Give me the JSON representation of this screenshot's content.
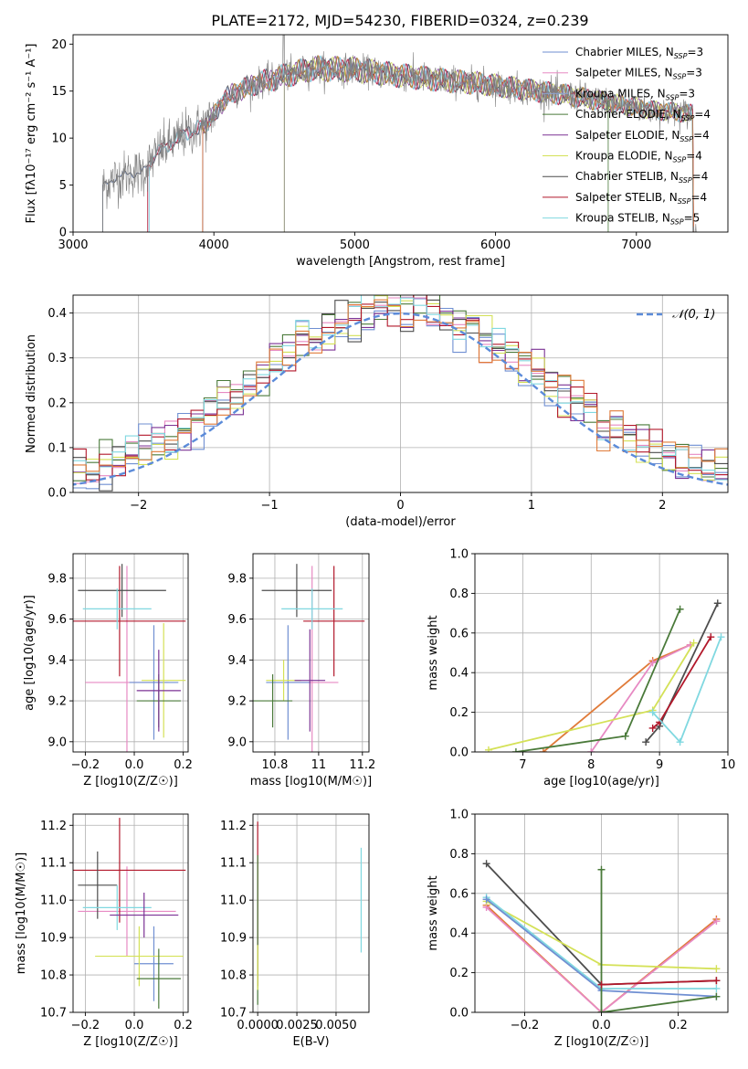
{
  "figure": {
    "title": "PLATE=2172, MJD=54230, FIBERID=0324, z=0.239"
  },
  "colors": {
    "chabrier_miles": "#6f8fd2",
    "salpeter_miles": "#e78ac3",
    "kroupa_miles": "#8da0cb",
    "chabrier_elodie": "#4a7a3a",
    "salpeter_elodie": "#7b3294",
    "kroupa_elodie": "#d4e157",
    "chabrier_stelib": "#4d4d4d",
    "salpeter_stelib": "#b2182b",
    "kroupa_stelib": "#80d8e0",
    "data_gray": "#808080",
    "orange": "#e07b39",
    "gauss": "#5b8bd9"
  },
  "chart_data": [
    {
      "id": "spectrum",
      "type": "line",
      "xlabel": "wavelength [Angstrom, rest frame]",
      "ylabel": "Flux [fλ10⁻¹⁷ erg cm⁻² s⁻¹ A⁻¹]",
      "xlim": [
        3000,
        7650
      ],
      "ylim": [
        0,
        21
      ],
      "xticks": [
        3000,
        4000,
        5000,
        6000,
        7000
      ],
      "yticks": [
        0,
        5,
        10,
        15,
        20
      ],
      "legend": [
        {
          "name": "Chabrier MILES, N_SSP=3",
          "color": "#6f8fd2"
        },
        {
          "name": "Salpeter MILES, N_SSP=3",
          "color": "#e78ac3"
        },
        {
          "name": "Kroupa MILES, N_SSP=3",
          "color": "#8da0cb"
        },
        {
          "name": "Chabrier ELODIE, N_SSP=4",
          "color": "#4a7a3a"
        },
        {
          "name": "Salpeter ELODIE, N_SSP=4",
          "color": "#7b3294"
        },
        {
          "name": "Kroupa ELODIE, N_SSP=4",
          "color": "#d4e157"
        },
        {
          "name": "Chabrier STELIB, N_SSP=4",
          "color": "#4d4d4d"
        },
        {
          "name": "Salpeter STELIB, N_SSP=4",
          "color": "#b2182b"
        },
        {
          "name": "Kroupa STELIB, N_SSP=5",
          "color": "#80d8e0"
        }
      ],
      "legend_position": "top-right",
      "continuum": {
        "x": [
          3210,
          3300,
          3400,
          3500,
          3600,
          3800,
          3950,
          4000,
          4100,
          4300,
          4500,
          4700,
          5000,
          5300,
          5600,
          5900,
          6200,
          6500,
          6800,
          7100,
          7400
        ],
        "y": [
          4.8,
          5.8,
          6.2,
          6.4,
          8.5,
          10.5,
          11.5,
          12.5,
          14.5,
          15.8,
          16.6,
          17.4,
          17.3,
          16.7,
          16.2,
          15.8,
          15.2,
          14.6,
          13.8,
          13.0,
          12.6
        ]
      },
      "model_starts": [
        3210,
        3530,
        3540,
        3920,
        3920,
        4500
      ]
    },
    {
      "id": "residuals",
      "type": "bar",
      "xlabel": "(data-model)/error",
      "ylabel": "Normed distribution",
      "xlim": [
        -2.5,
        2.5
      ],
      "ylim": [
        0,
        0.44
      ],
      "xticks": [
        -2,
        -1,
        0,
        1,
        2
      ],
      "yticks": [
        0.0,
        0.1,
        0.2,
        0.3,
        0.4
      ],
      "legend": [
        {
          "name": "𝒩(0, 1)",
          "color": "#5b8bd9"
        }
      ],
      "bin_width": 0.1
    },
    {
      "id": "age_vs_Z",
      "type": "scatter",
      "xlabel": "Z [log10(Z/Z☉)]",
      "ylabel": "age  [log10(age/yr)]",
      "xlim": [
        -0.25,
        0.22
      ],
      "ylim": [
        8.95,
        9.92
      ],
      "xticks": [
        -0.2,
        0.0,
        0.2
      ],
      "xticklabels": [
        "−0.2",
        "0.0",
        "0.2"
      ],
      "yticks": [
        9.0,
        9.2,
        9.4,
        9.6,
        9.8
      ],
      "points": [
        {
          "x": -0.03,
          "y": 9.29,
          "xerr": 0.17,
          "yerr": 0.57,
          "color": "#e78ac3"
        },
        {
          "x": -0.06,
          "y": 9.59,
          "xerr": 0.27,
          "yerr": 0.27,
          "color": "#b2182b"
        },
        {
          "x": -0.05,
          "y": 9.74,
          "xerr": 0.18,
          "yerr": 0.13,
          "color": "#4d4d4d"
        },
        {
          "x": -0.07,
          "y": 9.65,
          "xerr": 0.14,
          "yerr": 0.1,
          "color": "#80d8e0"
        },
        {
          "x": 0.08,
          "y": 9.29,
          "xerr": 0.1,
          "yerr": 0.28,
          "color": "#6f8fd2"
        },
        {
          "x": 0.12,
          "y": 9.3,
          "xerr": 0.09,
          "yerr": 0.28,
          "color": "#d4e157"
        },
        {
          "x": 0.1,
          "y": 9.2,
          "xerr": 0.09,
          "yerr": 0.13,
          "color": "#4a7a3a"
        },
        {
          "x": 0.1,
          "y": 9.25,
          "xerr": 0.09,
          "yerr": 0.2,
          "color": "#7b3294"
        }
      ]
    },
    {
      "id": "age_vs_mass",
      "type": "scatter",
      "xlabel": "mass [log10(M/M☉)]",
      "ylabel": "",
      "xlim": [
        10.7,
        11.23
      ],
      "ylim": [
        8.95,
        9.92
      ],
      "xticks": [
        10.8,
        11.0,
        11.2
      ],
      "yticks": [
        9.0,
        9.2,
        9.4,
        9.6,
        9.8
      ],
      "points": [
        {
          "x": 10.97,
          "y": 9.29,
          "xerr": 0.12,
          "yerr": 0.57,
          "color": "#e78ac3"
        },
        {
          "x": 11.07,
          "y": 9.59,
          "xerr": 0.14,
          "yerr": 0.27,
          "color": "#b2182b"
        },
        {
          "x": 10.9,
          "y": 9.74,
          "xerr": 0.16,
          "yerr": 0.13,
          "color": "#4d4d4d"
        },
        {
          "x": 10.97,
          "y": 9.65,
          "xerr": 0.14,
          "yerr": 0.1,
          "color": "#80d8e0"
        },
        {
          "x": 10.86,
          "y": 9.29,
          "xerr": 0.1,
          "yerr": 0.28,
          "color": "#6f8fd2"
        },
        {
          "x": 10.84,
          "y": 9.3,
          "xerr": 0.08,
          "yerr": 0.1,
          "color": "#d4e157"
        },
        {
          "x": 10.79,
          "y": 9.2,
          "xerr": 0.09,
          "yerr": 0.13,
          "color": "#4a7a3a"
        },
        {
          "x": 10.96,
          "y": 9.3,
          "xerr": 0.07,
          "yerr": 0.25,
          "color": "#7b3294"
        }
      ]
    },
    {
      "id": "weight_vs_age",
      "type": "line",
      "xlabel": "age  [log10(age/yr)]",
      "ylabel": "mass weight",
      "xlim": [
        6.3,
        10.0
      ],
      "ylim": [
        0,
        1.0
      ],
      "xticks": [
        7,
        8,
        9,
        10
      ],
      "yticks": [
        0.0,
        0.2,
        0.4,
        0.6,
        0.8,
        1.0
      ],
      "series": [
        {
          "x": [
            7.3,
            8.9,
            9.45
          ],
          "y": [
            0.0,
            0.46,
            0.54
          ],
          "color": "#e07b39"
        },
        {
          "x": [
            8.0,
            8.9,
            9.45
          ],
          "y": [
            0.0,
            0.45,
            0.54
          ],
          "color": "#e78ac3"
        },
        {
          "x": [
            6.5,
            8.9,
            9.5
          ],
          "y": [
            0.01,
            0.21,
            0.55
          ],
          "color": "#d4e157"
        },
        {
          "x": [
            6.9,
            8.5,
            9.3
          ],
          "y": [
            0.0,
            0.08,
            0.72
          ],
          "color": "#4a7a3a"
        },
        {
          "x": [
            8.8,
            9.0,
            9.85
          ],
          "y": [
            0.05,
            0.13,
            0.75
          ],
          "color": "#4d4d4d"
        },
        {
          "x": [
            8.9,
            9.0,
            9.75
          ],
          "y": [
            0.12,
            0.15,
            0.58
          ],
          "color": "#b2182b"
        },
        {
          "x": [
            8.9,
            9.3,
            9.9
          ],
          "y": [
            0.2,
            0.05,
            0.58
          ],
          "color": "#80d8e0"
        }
      ]
    },
    {
      "id": "mass_vs_Z",
      "type": "scatter",
      "xlabel": "Z [log10(Z/Z☉)]",
      "ylabel": "mass [log10(M/M☉)]",
      "xlim": [
        -0.25,
        0.22
      ],
      "ylim": [
        10.7,
        11.23
      ],
      "xticks": [
        -0.2,
        0.0,
        0.2
      ],
      "xticklabels": [
        "−0.2",
        "0.0",
        "0.2"
      ],
      "yticks": [
        10.7,
        10.8,
        10.9,
        11.0,
        11.1,
        11.2
      ],
      "points": [
        {
          "x": -0.03,
          "y": 10.97,
          "xerr": 0.2,
          "yerr": 0.12,
          "color": "#e78ac3"
        },
        {
          "x": -0.06,
          "y": 11.08,
          "xerr": 0.27,
          "yerr": 0.14,
          "color": "#b2182b"
        },
        {
          "x": -0.15,
          "y": 11.04,
          "xerr": 0.08,
          "yerr": 0.09,
          "color": "#4d4d4d"
        },
        {
          "x": -0.07,
          "y": 10.98,
          "xerr": 0.14,
          "yerr": 0.06,
          "color": "#80d8e0"
        },
        {
          "x": 0.08,
          "y": 10.83,
          "xerr": 0.08,
          "yerr": 0.1,
          "color": "#6f8fd2"
        },
        {
          "x": 0.02,
          "y": 10.85,
          "xerr": 0.18,
          "yerr": 0.08,
          "color": "#d4e157"
        },
        {
          "x": 0.1,
          "y": 10.79,
          "xerr": 0.09,
          "yerr": 0.08,
          "color": "#4a7a3a"
        },
        {
          "x": 0.04,
          "y": 10.96,
          "xerr": 0.14,
          "yerr": 0.06,
          "color": "#7b3294"
        }
      ]
    },
    {
      "id": "mass_vs_ebv",
      "type": "scatter",
      "xlabel": "E(B-V)",
      "ylabel": "",
      "xlim": [
        -0.0003,
        0.0071
      ],
      "ylim": [
        10.7,
        11.23
      ],
      "xticks": [
        0.0,
        0.0025,
        0.005
      ],
      "xticklabels": [
        "0.0000",
        "0.0025",
        "0.0050"
      ],
      "yticks": [
        10.7,
        10.8,
        10.9,
        11.0,
        11.1,
        11.2
      ],
      "points": [
        {
          "x": 0.0,
          "y": 10.99,
          "yerr": 0.22,
          "color": "#b2182b"
        },
        {
          "x": 0.0,
          "y": 10.92,
          "yerr": 0.2,
          "color": "#4a7a3a"
        },
        {
          "x": 0.0,
          "y": 10.82,
          "yerr": 0.06,
          "color": "#d4e157"
        },
        {
          "x": 0.0066,
          "y": 11.0,
          "yerr": 0.14,
          "color": "#80d8e0"
        }
      ]
    },
    {
      "id": "weight_vs_Z",
      "type": "line",
      "xlabel": "Z [log10(Z/Z☉)]",
      "ylabel": "mass weight",
      "xlim": [
        -0.33,
        0.33
      ],
      "ylim": [
        0,
        1.0
      ],
      "xticks": [
        -0.2,
        0.0,
        0.2
      ],
      "xticklabels": [
        "−0.2",
        "0.0",
        "0.2"
      ],
      "yticks": [
        0.0,
        0.2,
        0.4,
        0.6,
        0.8,
        1.0
      ],
      "series": [
        {
          "x": [
            -0.3,
            0.0,
            0.3
          ],
          "y": [
            0.75,
            0.14,
            0.16
          ],
          "color": "#4d4d4d"
        },
        {
          "x": [
            -0.3,
            0.0,
            0.3
          ],
          "y": [
            0.54,
            0.0,
            0.47
          ],
          "color": "#e07b39"
        },
        {
          "x": [
            -0.3,
            0.0,
            0.3
          ],
          "y": [
            0.53,
            0.0,
            0.46
          ],
          "color": "#e78ac3"
        },
        {
          "x": [
            -0.3,
            0.0,
            0.3
          ],
          "y": [
            0.56,
            0.24,
            0.22
          ],
          "color": "#d4e157"
        },
        {
          "x": [
            -0.3,
            0.0,
            0.3
          ],
          "y": [
            0.58,
            0.12,
            0.12
          ],
          "color": "#80d8e0"
        },
        {
          "x": [
            -0.3,
            0.0,
            0.3
          ],
          "y": [
            0.57,
            0.11,
            0.08
          ],
          "color": "#6f8fd2"
        },
        {
          "x": [
            0.0,
            0.0,
            0.3
          ],
          "y": [
            0.72,
            0.0,
            0.08
          ],
          "color": "#4a7a3a"
        },
        {
          "x": [
            0.0,
            0.3
          ],
          "y": [
            0.14,
            0.16
          ],
          "color": "#b2182b"
        }
      ]
    }
  ]
}
